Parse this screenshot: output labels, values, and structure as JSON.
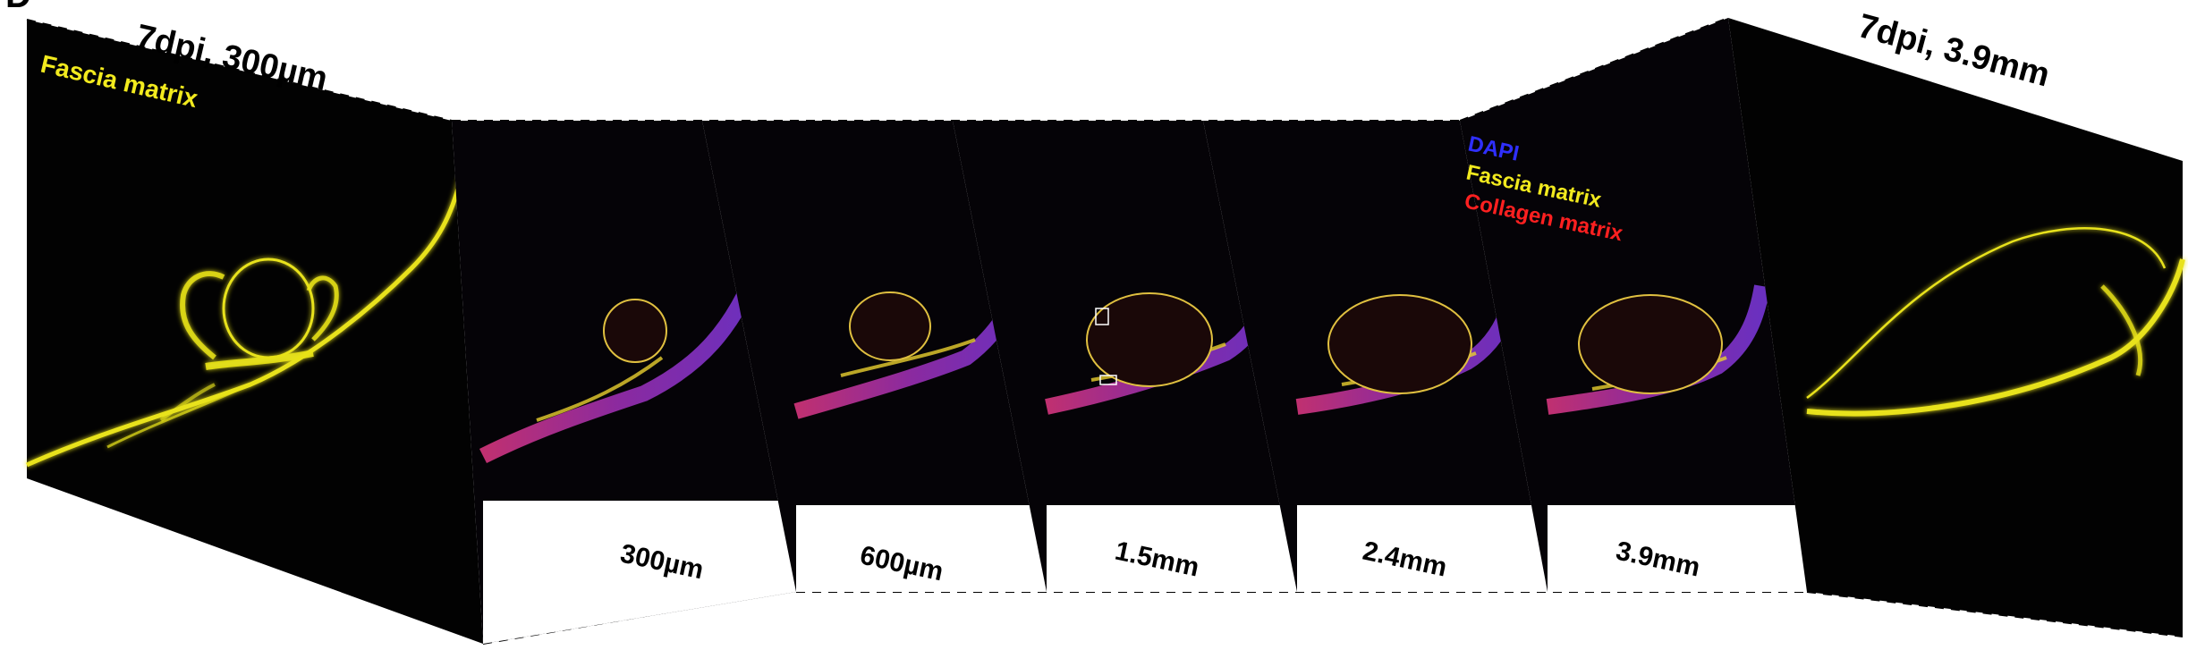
{
  "panel_letter": "D",
  "left_panel": {
    "title": "7dpi, 300µm",
    "channel_label": "Fascia matrix",
    "channel_color": "#f2ea1e"
  },
  "right_panel": {
    "title": "7dpi, 3.9mm"
  },
  "legend": [
    {
      "label": "DAPI",
      "color": "#2f2fff"
    },
    {
      "label": "Fascia matrix",
      "color": "#f2ea1e"
    },
    {
      "label": "Collagen matrix",
      "color": "#ff2020"
    }
  ],
  "sections": [
    {
      "label": "300µm"
    },
    {
      "label": "600µm"
    },
    {
      "label": "1.5mm"
    },
    {
      "label": "2.4mm"
    },
    {
      "label": "3.9mm"
    }
  ]
}
